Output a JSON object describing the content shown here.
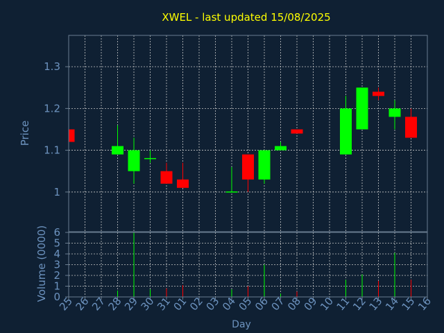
{
  "chart_data": {
    "type": "candlestick",
    "title": "XWEL - last updated 15/08/2025",
    "xlabel": "Day",
    "ylabel": "Price",
    "volume_label": "Volume (0000)",
    "x_ticks": [
      "25",
      "26",
      "27",
      "28",
      "29",
      "30",
      "31",
      "01",
      "02",
      "03",
      "04",
      "05",
      "06",
      "07",
      "08",
      "09",
      "10",
      "11",
      "12",
      "13",
      "14",
      "15",
      "16"
    ],
    "price_yticks": [
      1,
      1.1,
      1.2,
      1.3
    ],
    "price_ylim": [
      0.905,
      1.375
    ],
    "volume_yticks": [
      0,
      1,
      2,
      3,
      4,
      5,
      6
    ],
    "volume_ylim": [
      0,
      6
    ],
    "grid": true,
    "colors": {
      "background": "#0f2033",
      "plot_border": "#6a7d90",
      "grid": "#c8c8c8",
      "axis_text": "#6d93bf",
      "title": "#ffff00",
      "up": "#00ff00",
      "down": "#ff0000"
    },
    "candles": [
      {
        "day": "25",
        "open": 1.15,
        "high": 1.15,
        "low": 1.12,
        "close": 1.12,
        "volume": 0.1
      },
      {
        "day": "28",
        "open": 1.09,
        "high": 1.16,
        "low": 1.09,
        "close": 1.11,
        "volume": 0.6
      },
      {
        "day": "29",
        "open": 1.05,
        "high": 1.13,
        "low": 1.02,
        "close": 1.1,
        "volume": 6.0
      },
      {
        "day": "30",
        "open": 1.08,
        "high": 1.1,
        "low": 1.07,
        "close": 1.08,
        "volume": 0.7
      },
      {
        "day": "31",
        "open": 1.05,
        "high": 1.07,
        "low": 1.02,
        "close": 1.02,
        "volume": 0.8
      },
      {
        "day": "01",
        "open": 1.03,
        "high": 1.07,
        "low": 1.01,
        "close": 1.01,
        "volume": 1.1
      },
      {
        "day": "04",
        "open": 1.0,
        "high": 1.06,
        "low": 1.0,
        "close": 1.0,
        "volume": 0.7
      },
      {
        "day": "05",
        "open": 1.09,
        "high": 1.09,
        "low": 1.0,
        "close": 1.03,
        "volume": 1.0
      },
      {
        "day": "06",
        "open": 1.03,
        "high": 1.1,
        "low": 1.02,
        "close": 1.1,
        "volume": 3.0
      },
      {
        "day": "07",
        "open": 1.1,
        "high": 1.12,
        "low": 1.1,
        "close": 1.11,
        "volume": 0.3
      },
      {
        "day": "08",
        "open": 1.15,
        "high": 1.15,
        "low": 1.14,
        "close": 1.14,
        "volume": 0.5
      },
      {
        "day": "11",
        "open": 1.09,
        "high": 1.23,
        "low": 1.09,
        "close": 1.2,
        "volume": 1.6
      },
      {
        "day": "12",
        "open": 1.15,
        "high": 1.25,
        "low": 1.15,
        "close": 1.25,
        "volume": 2.1
      },
      {
        "day": "13",
        "open": 1.24,
        "high": 1.25,
        "low": 1.22,
        "close": 1.23,
        "volume": 1.5
      },
      {
        "day": "14",
        "open": 1.18,
        "high": 1.22,
        "low": 1.15,
        "close": 1.2,
        "volume": 4.1
      },
      {
        "day": "15",
        "open": 1.18,
        "high": 1.2,
        "low": 1.13,
        "close": 1.13,
        "volume": 1.6
      }
    ]
  }
}
